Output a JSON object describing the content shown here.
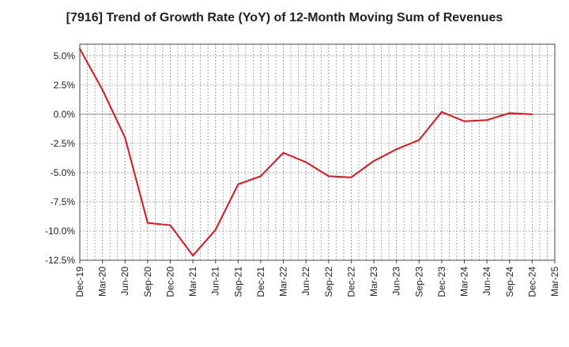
{
  "chart_data": {
    "type": "line",
    "title": "[7916]  Trend of Growth Rate (YoY) of 12-Month Moving Sum of Revenues",
    "xlabel": "",
    "ylabel": "",
    "x_tick_labels": [
      "Dec-19",
      "Mar-20",
      "Jun-20",
      "Sep-20",
      "Dec-20",
      "Mar-21",
      "Jun-21",
      "Sep-21",
      "Dec-21",
      "Mar-22",
      "Jun-22",
      "Sep-22",
      "Dec-22",
      "Mar-23",
      "Jun-23",
      "Sep-23",
      "Dec-23",
      "Mar-24",
      "Jun-24",
      "Sep-24",
      "Dec-24",
      "Mar-25"
    ],
    "y_ticks": [
      5.0,
      2.5,
      0.0,
      -2.5,
      -5.0,
      -7.5,
      -10.0,
      -12.5
    ],
    "y_tick_labels": [
      "5.0%",
      "2.5%",
      "0.0%",
      "-2.5%",
      "-5.0%",
      "-7.5%",
      "-10.0%",
      "-12.5%"
    ],
    "ylim": [
      -12.5,
      6.0
    ],
    "grid": true,
    "series": [
      {
        "color": "#e8101a",
        "x": [
          "Dec-19",
          "Mar-20",
          "Jun-20",
          "Sep-20",
          "Dec-20",
          "Mar-21",
          "Jun-21",
          "Sep-21",
          "Dec-21",
          "Mar-22",
          "Jun-22",
          "Sep-22",
          "Dec-22",
          "Mar-23",
          "Jun-23",
          "Sep-23",
          "Dec-23",
          "Mar-24",
          "Jun-24",
          "Sep-24",
          "Dec-24"
        ],
        "values": [
          5.6,
          2.1,
          -2.0,
          -9.3,
          -9.5,
          -12.1,
          -9.9,
          -6.0,
          -5.3,
          -3.3,
          -4.1,
          -5.3,
          -5.4,
          -4.0,
          -3.0,
          -2.2,
          0.2,
          -0.6,
          -0.5,
          0.1,
          0.0
        ]
      }
    ]
  }
}
